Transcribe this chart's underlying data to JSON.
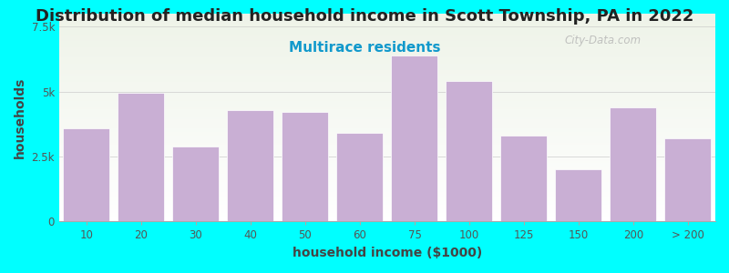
{
  "title": "Distribution of median household income in Scott Township, PA in 2022",
  "subtitle": "Multirace residents",
  "xlabel": "household income ($1000)",
  "ylabel": "households",
  "background_color": "#00FFFF",
  "plot_bg_top": "#eef3e8",
  "plot_bg_bottom": "#ffffff",
  "bar_color": "#c9afd4",
  "categories": [
    "10",
    "20",
    "30",
    "40",
    "50",
    "60",
    "75",
    "100",
    "125",
    "150",
    "200",
    "> 200"
  ],
  "values": [
    3600,
    4950,
    2900,
    4300,
    4200,
    3400,
    6400,
    5400,
    3300,
    2000,
    4400,
    3200
  ],
  "ylim": [
    0,
    8000
  ],
  "yticks": [
    0,
    2500,
    5000,
    7500
  ],
  "ytick_labels": [
    "0",
    "2.5k",
    "5k",
    "7.5k"
  ],
  "watermark": "City-Data.com",
  "title_fontsize": 13,
  "subtitle_fontsize": 11,
  "axis_label_fontsize": 10,
  "tick_fontsize": 8.5
}
